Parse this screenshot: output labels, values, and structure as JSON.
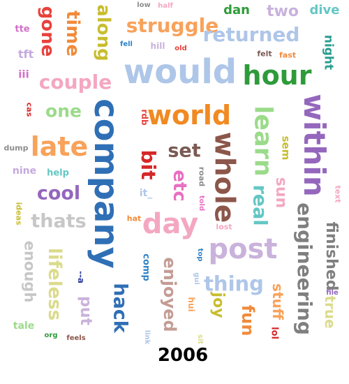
{
  "caption": "2006",
  "words": [
    {
      "text": "gone",
      "color": "#e8413c"
    },
    {
      "text": "time",
      "color": "#f18a3b"
    },
    {
      "text": "along",
      "color": "#c8bd2e"
    },
    {
      "text": "low",
      "color": "#8c8c8c"
    },
    {
      "text": "half",
      "color": "#f4a7c0"
    },
    {
      "text": "struggle",
      "color": "#f8a25a"
    },
    {
      "text": "dan",
      "color": "#2e9b3a"
    },
    {
      "text": "two",
      "color": "#c9b2db"
    },
    {
      "text": "dive",
      "color": "#63c7c4"
    },
    {
      "text": "tte",
      "color": "#d36fc7"
    },
    {
      "text": "returned",
      "color": "#aec6e8"
    },
    {
      "text": "tft",
      "color": "#c6a9de"
    },
    {
      "text": "fell",
      "color": "#2f82c5"
    },
    {
      "text": "hill",
      "color": "#c9b2db"
    },
    {
      "text": "old",
      "color": "#e8413c"
    },
    {
      "text": "felt",
      "color": "#7a5a53"
    },
    {
      "text": "fast",
      "color": "#f18a3b"
    },
    {
      "text": "night",
      "color": "#2a9d8f"
    },
    {
      "text": "iii",
      "color": "#d36fc7"
    },
    {
      "text": "couple",
      "color": "#f4a7c0"
    },
    {
      "text": "would",
      "color": "#aec6e8"
    },
    {
      "text": "hour",
      "color": "#2e9b3a"
    },
    {
      "text": "cas",
      "color": "#d62728"
    },
    {
      "text": "one",
      "color": "#9bdb8a"
    },
    {
      "text": "company",
      "color": "#2f6fb5"
    },
    {
      "text": "world",
      "color": "#f18a22"
    },
    {
      "text": "learn",
      "color": "#9bdb8a"
    },
    {
      "text": "within",
      "color": "#9467bd"
    },
    {
      "text": "rdb",
      "color": "#e8413c"
    },
    {
      "text": "late",
      "color": "#f8a25a"
    },
    {
      "text": "dump",
      "color": "#8c8c8c"
    },
    {
      "text": "bit",
      "color": "#d62728"
    },
    {
      "text": "set",
      "color": "#7a5a53"
    },
    {
      "text": "whole",
      "color": "#8c564b"
    },
    {
      "text": "sem",
      "color": "#c8bd2e"
    },
    {
      "text": "nine",
      "color": "#c6a9de"
    },
    {
      "text": "help",
      "color": "#63c7c4"
    },
    {
      "text": "etc",
      "color": "#e96fc1"
    },
    {
      "text": "road",
      "color": "#8c8c8c"
    },
    {
      "text": "sun",
      "color": "#f4a7c0"
    },
    {
      "text": "text",
      "color": "#f4a7c0"
    },
    {
      "text": "cool",
      "color": "#9467bd"
    },
    {
      "text": "real",
      "color": "#63c7c4"
    },
    {
      "text": "it_",
      "color": "#aec6e8"
    },
    {
      "text": "told",
      "color": "#e96fc1"
    },
    {
      "text": "ideas",
      "color": "#c8bd2e"
    },
    {
      "text": "thats",
      "color": "#c7c7c7"
    },
    {
      "text": "hat",
      "color": "#f18a3b"
    },
    {
      "text": "day",
      "color": "#f4a7c0"
    },
    {
      "text": "engineering",
      "color": "#7f7f7f"
    },
    {
      "text": "finished",
      "color": "#7f7f7f"
    },
    {
      "text": "lost",
      "color": "#f4a7c0"
    },
    {
      "text": "post",
      "color": "#c9b2db"
    },
    {
      "text": "enough",
      "color": "#c7c7c7"
    },
    {
      "text": "lifeless",
      "color": "#dbdb8d"
    },
    {
      "text": "--a",
      "color": "#2f3e9e"
    },
    {
      "text": "comp",
      "color": "#2f82c5"
    },
    {
      "text": "top",
      "color": "#2f82c5"
    },
    {
      "text": "enjoyed",
      "color": "#c49c94"
    },
    {
      "text": "thing",
      "color": "#aec6e8"
    },
    {
      "text": "gui",
      "color": "#aec6e8"
    },
    {
      "text": "file",
      "color": "#9467bd"
    },
    {
      "text": "true",
      "color": "#dbdb8d"
    },
    {
      "text": "put",
      "color": "#c9b2db"
    },
    {
      "text": "hack",
      "color": "#2f6fb5"
    },
    {
      "text": "hui",
      "color": "#f8a25a"
    },
    {
      "text": "joy",
      "color": "#c8bd2e"
    },
    {
      "text": "stuff",
      "color": "#f8a25a"
    },
    {
      "text": "fun",
      "color": "#f18a3b"
    },
    {
      "text": "lol",
      "color": "#d62728"
    },
    {
      "text": "tale",
      "color": "#9bdb8a"
    },
    {
      "text": "org",
      "color": "#2e9b3a"
    },
    {
      "text": "feels",
      "color": "#8c564b"
    },
    {
      "text": "link",
      "color": "#aec6e8"
    },
    {
      "text": "sit",
      "color": "#dbdb8d"
    }
  ]
}
